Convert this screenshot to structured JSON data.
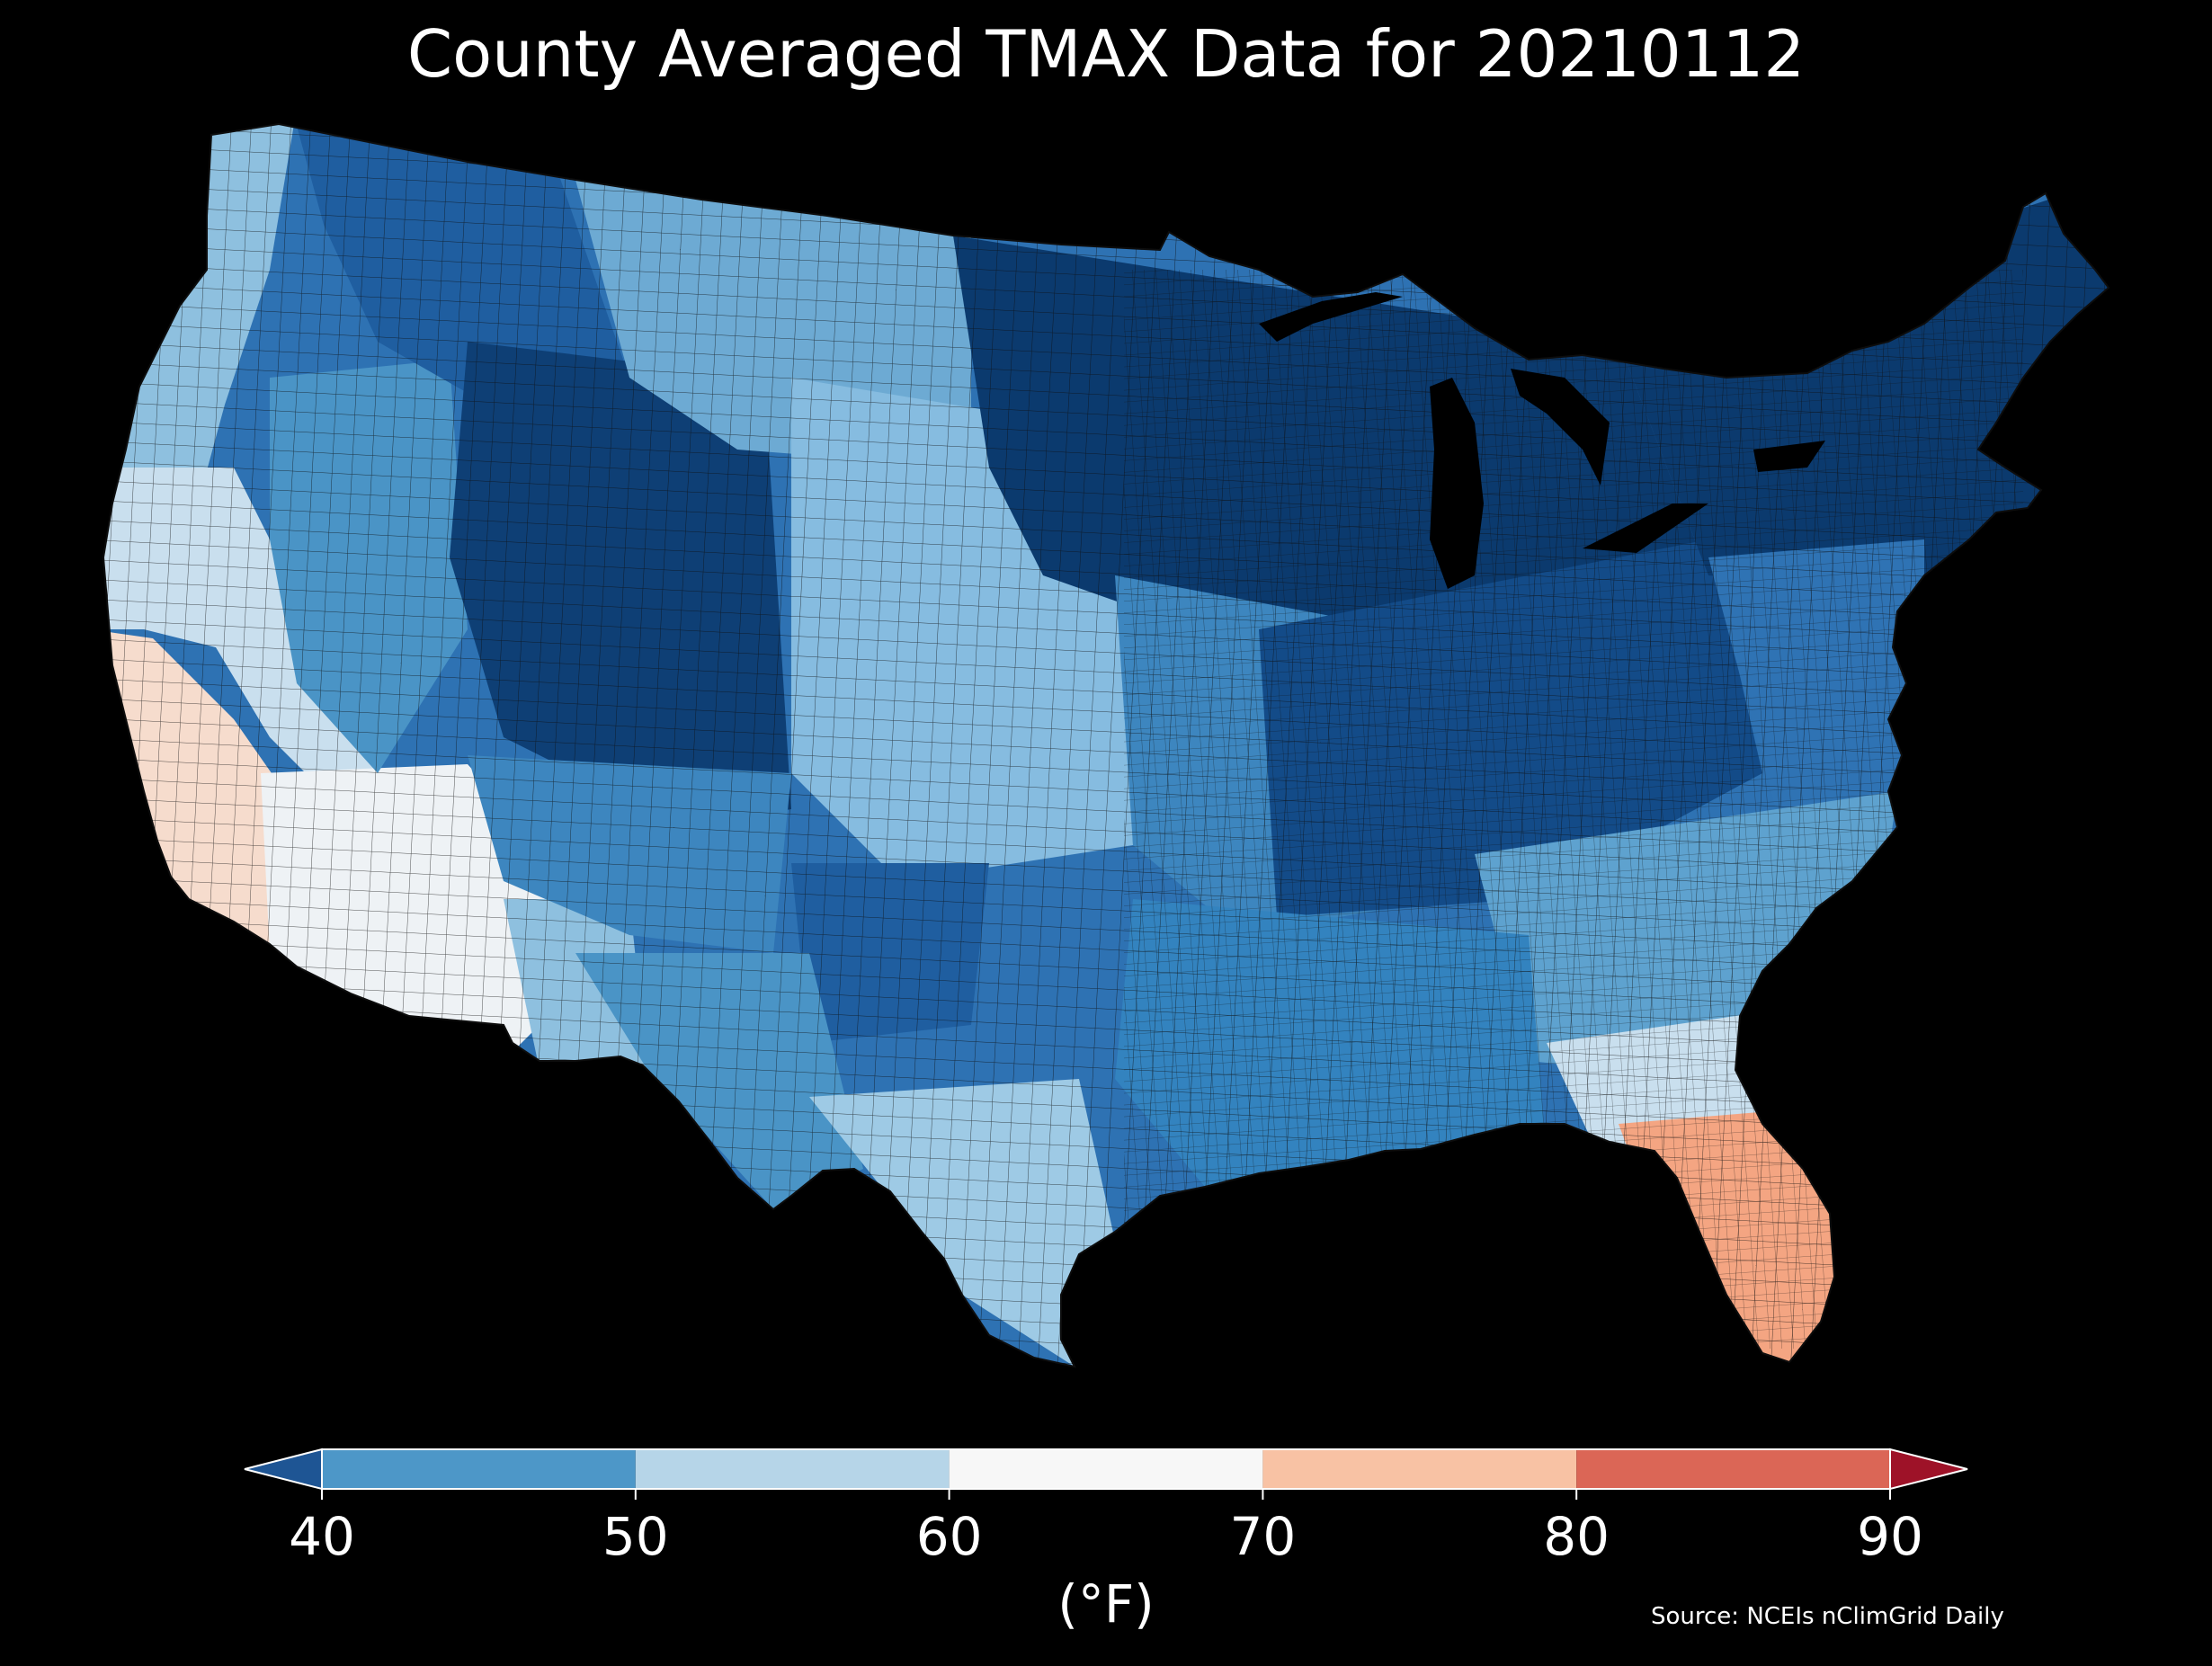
{
  "title": "County Averaged TMAX Data for 20210112",
  "map": {
    "region": "Contiguous United States",
    "ocean_color": "#000000",
    "county_border_color": "#1a1a1a",
    "regional_values_f": [
      {
        "region": "Northern Plains / Upper Midwest",
        "tmax_bin": "<40",
        "color": "#0b3a6e"
      },
      {
        "region": "Rocky Mountains / Colorado",
        "tmax_bin": "<40",
        "color": "#0b3a6e"
      },
      {
        "region": "Ohio Valley / Appalachians",
        "tmax_bin": "<40",
        "color": "#1f5ea0"
      },
      {
        "region": "Great Plains / Texas Panhandle",
        "tmax_bin": "40-50",
        "color": "#4a94c6"
      },
      {
        "region": "Pacific Northwest coast",
        "tmax_bin": "50-60",
        "color": "#8ec0df"
      },
      {
        "region": "Southern California / Arizona desert",
        "tmax_bin": "60-70",
        "color": "#f4f4f4"
      },
      {
        "region": "Southwest coast",
        "tmax_bin": "70-80",
        "color": "#f7cbb4"
      },
      {
        "region": "Florida peninsula",
        "tmax_bin": "70-80",
        "color": "#f4a582"
      }
    ]
  },
  "colorbar": {
    "ticks": [
      "40",
      "50",
      "60",
      "70",
      "80",
      "90"
    ],
    "tick_values": [
      40,
      50,
      60,
      70,
      80,
      90
    ],
    "colors": {
      "under": "#1e5594",
      "bin_40_50": "#4d97c8",
      "bin_50_60": "#b6d5e8",
      "bin_60_70": "#f7f7f7",
      "bin_70_80": "#f8c2a4",
      "bin_80_90": "#db6656",
      "over": "#9e1228"
    },
    "unit": "(°F)"
  },
  "source": "Source: NCEIs nClimGrid Daily"
}
